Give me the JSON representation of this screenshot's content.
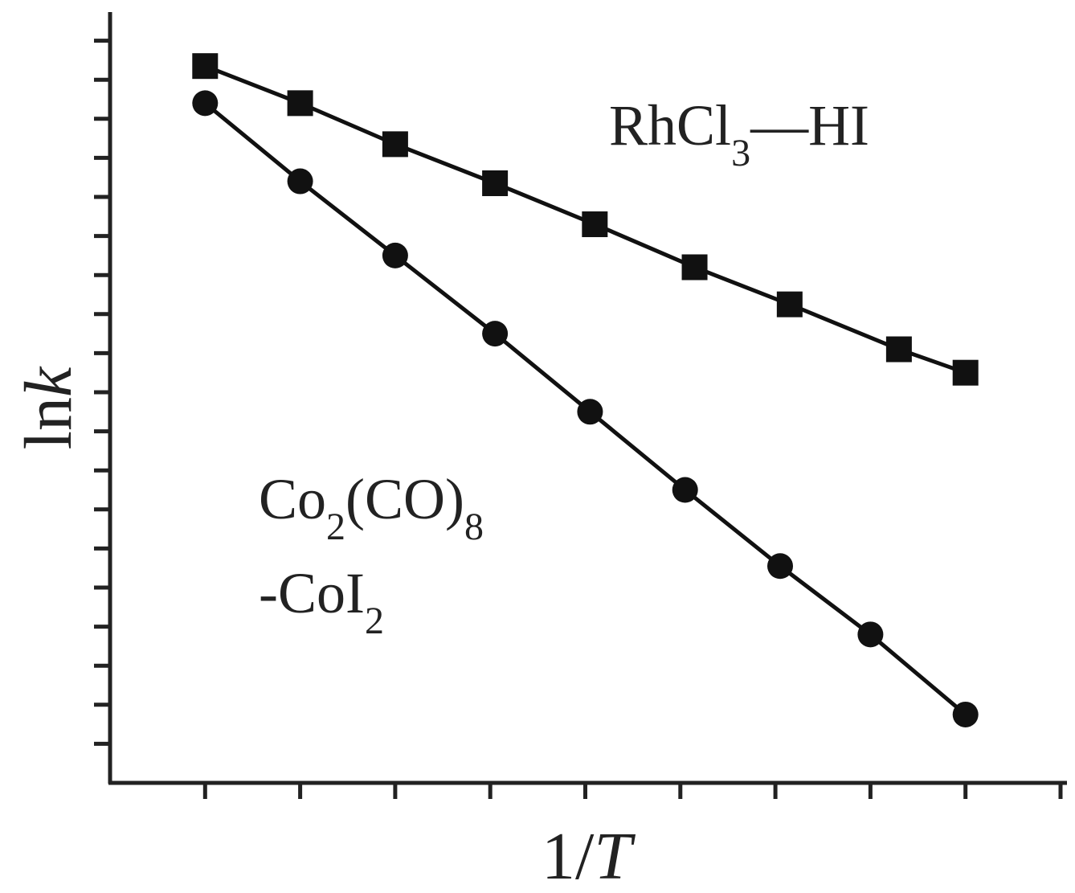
{
  "chart_data": {
    "type": "line",
    "xlabel": "1/T",
    "ylabel": "lnk",
    "grid": false,
    "legend": "none",
    "xlim": [
      0,
      10
    ],
    "ylim": [
      0,
      19
    ],
    "x_tick_count": 10,
    "y_tick_count": 19,
    "series": [
      {
        "label_main": "RhCl",
        "label_sub": "3",
        "label_tail": "—HI",
        "marker": "square",
        "color": "#111111",
        "x": [
          1,
          2,
          3,
          4.05,
          5.1,
          6.15,
          7.15,
          8.3,
          9.0
        ],
        "y": [
          18.35,
          17.4,
          16.35,
          15.35,
          14.3,
          13.2,
          12.25,
          11.1,
          10.5
        ]
      },
      {
        "label_lines": [
          {
            "parts": [
              {
                "t": "Co",
                "sub": false
              },
              {
                "t": "2",
                "sub": true
              },
              {
                "t": "(CO)",
                "sub": false
              },
              {
                "t": "8",
                "sub": true
              }
            ]
          },
          {
            "parts": [
              {
                "t": "-CoI",
                "sub": false
              },
              {
                "t": "2",
                "sub": true
              }
            ]
          }
        ],
        "marker": "circle",
        "color": "#111111",
        "x": [
          1,
          2,
          3,
          4.05,
          5.05,
          6.05,
          7.05,
          8.0,
          9.0
        ],
        "y": [
          17.4,
          15.4,
          13.5,
          11.5,
          9.5,
          7.5,
          5.55,
          3.8,
          1.75
        ]
      }
    ]
  }
}
